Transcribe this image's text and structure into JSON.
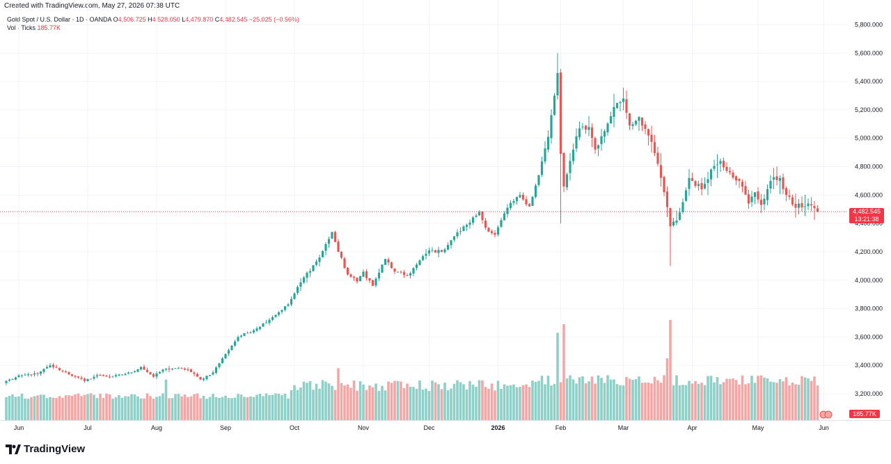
{
  "caption": "Created with TradingView.com, May 27, 2026 07:38 UTC",
  "legend": {
    "symbol": "Gold Spot / U.S. Dollar · 1D · OANDA",
    "o_label": "O",
    "o_value": "4,506.725",
    "h_label": "H",
    "h_value": "4,528.050",
    "l_label": "L",
    "l_value": "4,479.870",
    "c_label": "C",
    "c_value": "4,482.545",
    "change": "−25.025 (−0.56%)",
    "vol_label": "Vol · Ticks",
    "vol_value": "185.77K"
  },
  "badges": {
    "price": "4,482.545",
    "countdown": "13:21:38",
    "volume": "185.77K"
  },
  "brand": "TradingView",
  "colors": {
    "up": "#26a69a",
    "down": "#ef5350",
    "up_vol": "#8ecfc8",
    "down_vol": "#f5a6a4",
    "badge": "#f23645"
  },
  "chart_data": {
    "type": "candlestick",
    "ylim": [
      3100,
      5900
    ],
    "y_ticks": [
      {
        "value": 5800,
        "label": "5,800.000"
      },
      {
        "value": 5600,
        "label": "5,600.000"
      },
      {
        "value": 5400,
        "label": "5,400.000"
      },
      {
        "value": 5200,
        "label": "5,200.000"
      },
      {
        "value": 5000,
        "label": "5,000.000"
      },
      {
        "value": 4800,
        "label": "4,800.000"
      },
      {
        "value": 4600,
        "label": "4,600.000"
      },
      {
        "value": 4400,
        "label": "4,400.000"
      },
      {
        "value": 4200,
        "label": "4,200.000"
      },
      {
        "value": 4000,
        "label": "4,000.000"
      },
      {
        "value": 3800,
        "label": "3,800.000"
      },
      {
        "value": 3600,
        "label": "3,600.000"
      },
      {
        "value": 3400,
        "label": "3,400.000"
      },
      {
        "value": 3200,
        "label": "3,200.000"
      }
    ],
    "x_ticks": [
      {
        "index": 4,
        "label": "Jun",
        "bold": false
      },
      {
        "index": 26,
        "label": "Jul",
        "bold": false
      },
      {
        "index": 48,
        "label": "Aug",
        "bold": false
      },
      {
        "index": 70,
        "label": "Sep",
        "bold": false
      },
      {
        "index": 92,
        "label": "Oct",
        "bold": false
      },
      {
        "index": 114,
        "label": "Nov",
        "bold": false
      },
      {
        "index": 135,
        "label": "Dec",
        "bold": false
      },
      {
        "index": 157,
        "label": "2026",
        "bold": true
      },
      {
        "index": 177,
        "label": "Feb",
        "bold": false
      },
      {
        "index": 197,
        "label": "Mar",
        "bold": false
      },
      {
        "index": 219,
        "label": "Apr",
        "bold": false
      },
      {
        "index": 240,
        "label": "May",
        "bold": false
      },
      {
        "index": 261,
        "label": "Jun",
        "bold": false
      }
    ],
    "last_price": 4482.545,
    "close_anchors": [
      [
        0,
        3290
      ],
      [
        5,
        3330
      ],
      [
        10,
        3340
      ],
      [
        14,
        3400
      ],
      [
        18,
        3360
      ],
      [
        22,
        3320
      ],
      [
        25,
        3290
      ],
      [
        29,
        3330
      ],
      [
        34,
        3320
      ],
      [
        40,
        3350
      ],
      [
        43,
        3390
      ],
      [
        47,
        3320
      ],
      [
        50,
        3370
      ],
      [
        54,
        3380
      ],
      [
        58,
        3370
      ],
      [
        62,
        3300
      ],
      [
        66,
        3350
      ],
      [
        70,
        3480
      ],
      [
        74,
        3600
      ],
      [
        80,
        3660
      ],
      [
        85,
        3740
      ],
      [
        90,
        3830
      ],
      [
        95,
        4020
      ],
      [
        100,
        4160
      ],
      [
        104,
        4340
      ],
      [
        106,
        4200
      ],
      [
        109,
        4040
      ],
      [
        112,
        3990
      ],
      [
        114,
        4060
      ],
      [
        117,
        3960
      ],
      [
        121,
        4150
      ],
      [
        124,
        4060
      ],
      [
        128,
        4030
      ],
      [
        131,
        4110
      ],
      [
        135,
        4210
      ],
      [
        139,
        4200
      ],
      [
        143,
        4310
      ],
      [
        147,
        4390
      ],
      [
        151,
        4480
      ],
      [
        153,
        4370
      ],
      [
        156,
        4320
      ],
      [
        160,
        4510
      ],
      [
        164,
        4600
      ],
      [
        167,
        4520
      ],
      [
        170,
        4740
      ],
      [
        173,
        5010
      ],
      [
        175,
        5300
      ],
      [
        176,
        5460
      ],
      [
        177,
        4890
      ],
      [
        178,
        4660
      ],
      [
        181,
        4920
      ],
      [
        183,
        5070
      ],
      [
        186,
        5080
      ],
      [
        188,
        4920
      ],
      [
        191,
        5050
      ],
      [
        194,
        5220
      ],
      [
        197,
        5280
      ],
      [
        199,
        5090
      ],
      [
        202,
        5150
      ],
      [
        205,
        5020
      ],
      [
        208,
        4820
      ],
      [
        210,
        4620
      ],
      [
        212,
        4380
      ],
      [
        214,
        4420
      ],
      [
        216,
        4550
      ],
      [
        218,
        4720
      ],
      [
        222,
        4640
      ],
      [
        225,
        4780
      ],
      [
        228,
        4840
      ],
      [
        231,
        4760
      ],
      [
        234,
        4700
      ],
      [
        237,
        4540
      ],
      [
        239,
        4620
      ],
      [
        241,
        4530
      ],
      [
        244,
        4700
      ],
      [
        247,
        4720
      ],
      [
        249,
        4600
      ],
      [
        252,
        4510
      ],
      [
        256,
        4540
      ],
      [
        258,
        4507
      ],
      [
        259,
        4482.545
      ]
    ],
    "volume_spikes": [
      [
        178,
        3690
      ],
      [
        176,
        3630
      ],
      [
        212,
        3720
      ],
      [
        211,
        3450
      ],
      [
        106,
        3380
      ],
      [
        51,
        3300
      ]
    ],
    "volume_value": "185.77K"
  }
}
